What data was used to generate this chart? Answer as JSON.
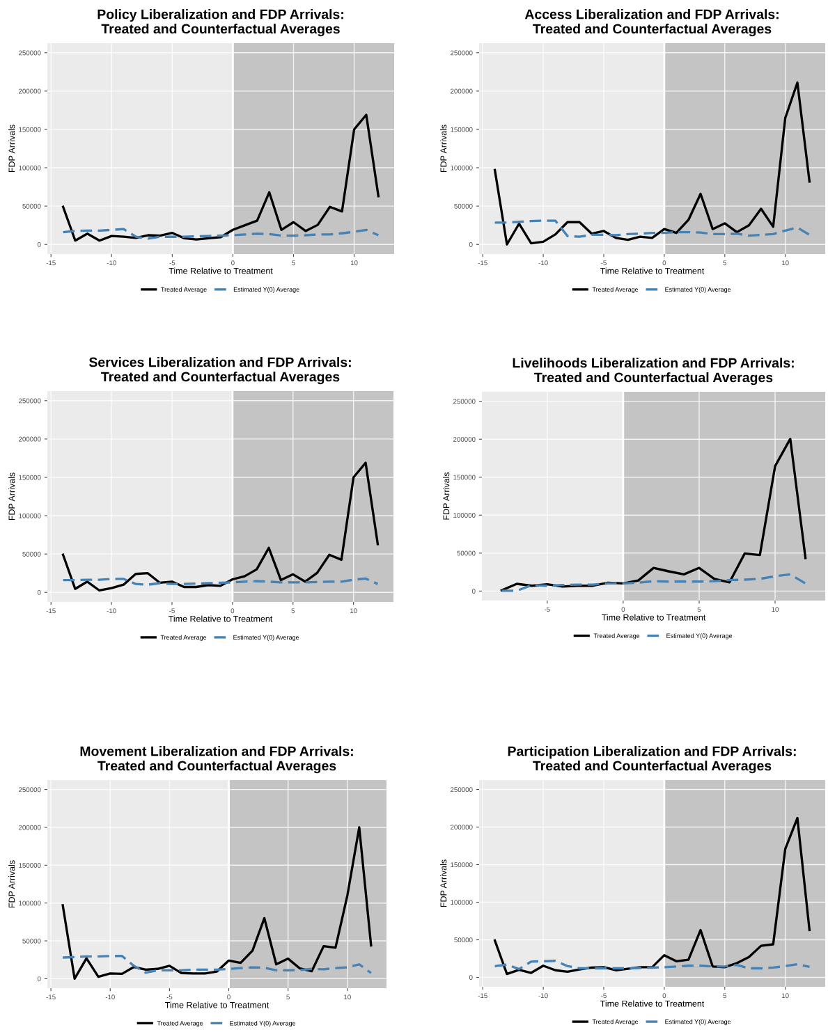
{
  "chart_data": [
    {
      "type": "line",
      "title": "Policy Liberalization and FDP Arrivals:\nTreated and Counterfactual Averages",
      "xlabel": "Time Relative to Treatment",
      "ylabel": "FDP Arrivals",
      "x": [
        -14,
        -13,
        -12,
        -11,
        -10,
        -9,
        -8,
        -7,
        -6,
        -5,
        -4,
        -3,
        -2,
        -1,
        0,
        1,
        2,
        3,
        4,
        5,
        6,
        7,
        8,
        9,
        10,
        11,
        12
      ],
      "xlim": [
        -15.3,
        13.3
      ],
      "xticks": [
        -15,
        -10,
        -5,
        0,
        5,
        10
      ],
      "ylim": [
        -12500,
        262500
      ],
      "yticks": [
        0,
        50000,
        100000,
        150000,
        200000,
        250000
      ],
      "grid": true,
      "legend": "bottom",
      "series": [
        {
          "name": "Treated Average",
          "color": "#000000",
          "line_style": "solid",
          "values": [
            49000,
            5000,
            14000,
            5000,
            11000,
            10000,
            8500,
            12000,
            11500,
            15000,
            8000,
            6500,
            8000,
            9500,
            19000,
            25000,
            31000,
            68000,
            19000,
            29000,
            17500,
            25500,
            49000,
            43000,
            150000,
            169000,
            63000
          ]
        },
        {
          "name": "Estimated Y(0) Average",
          "color": "#4682b4",
          "line_style": "dashed",
          "values": [
            16000,
            17500,
            18000,
            18000,
            19000,
            20000,
            10000,
            7500,
            10000,
            10000,
            10000,
            10500,
            11000,
            11500,
            12000,
            13000,
            14000,
            13500,
            11500,
            11500,
            12000,
            13000,
            13000,
            14500,
            16500,
            19000,
            12000
          ]
        }
      ],
      "bands": [
        {
          "axis": "x",
          "from": 0,
          "to": 13.3,
          "color": "#c4c4c4"
        }
      ],
      "ref_lines": [
        {
          "axis": "x",
          "value": 0,
          "color": "#ffffff"
        }
      ]
    },
    {
      "type": "line",
      "title": "Access Liberalization and FDP Arrivals:\nTreated and Counterfactual Averages",
      "xlabel": "Time Relative to Treatment",
      "ylabel": "FDP Arrivals",
      "x": [
        -14,
        -13,
        -12,
        -11,
        -10,
        -9,
        -8,
        -7,
        -6,
        -5,
        -4,
        -3,
        -2,
        -1,
        0,
        1,
        2,
        3,
        4,
        5,
        6,
        7,
        8,
        9,
        10,
        11,
        12
      ],
      "xlim": [
        -15.3,
        13.3
      ],
      "xticks": [
        -15,
        -10,
        -5,
        0,
        5,
        10
      ],
      "ylim": [
        -12500,
        262500
      ],
      "yticks": [
        0,
        50000,
        100000,
        150000,
        200000,
        250000
      ],
      "grid": true,
      "legend": "bottom",
      "series": [
        {
          "name": "Treated Average",
          "color": "#000000",
          "line_style": "solid",
          "values": [
            97000,
            0,
            27000,
            1500,
            3500,
            13000,
            29000,
            29000,
            14000,
            17500,
            8500,
            6000,
            10000,
            8500,
            20000,
            15000,
            32000,
            66000,
            20000,
            27500,
            16000,
            25000,
            46500,
            23000,
            165000,
            211000,
            82000
          ]
        },
        {
          "name": "Estimated Y(0) Average",
          "color": "#4682b4",
          "line_style": "dashed",
          "values": [
            28500,
            28500,
            29500,
            30500,
            31000,
            31000,
            11000,
            10000,
            12500,
            12500,
            12000,
            13500,
            14000,
            15000,
            15000,
            16000,
            16000,
            15500,
            13500,
            13500,
            14000,
            11500,
            12500,
            13500,
            18000,
            22000,
            12500
          ]
        }
      ],
      "bands": [
        {
          "axis": "x",
          "from": 0,
          "to": 13.3,
          "color": "#c4c4c4"
        }
      ],
      "ref_lines": [
        {
          "axis": "x",
          "value": 0,
          "color": "#ffffff"
        }
      ]
    },
    {
      "type": "line",
      "title": "Services Liberalization and FDP Arrivals:\nTreated and Counterfactual Averages",
      "xlabel": "Time Relative to Treatment",
      "ylabel": "FDP Arrivals",
      "x": [
        -14,
        -13,
        -12,
        -11,
        -10,
        -9,
        -8,
        -7,
        -6,
        -5,
        -4,
        -3,
        -2,
        -1,
        0,
        1,
        2,
        3,
        4,
        5,
        6,
        7,
        8,
        9,
        10,
        11,
        12
      ],
      "xlim": [
        -15.3,
        13.3
      ],
      "xticks": [
        -15,
        -10,
        -5,
        0,
        5,
        10
      ],
      "ylim": [
        -12500,
        262500
      ],
      "yticks": [
        0,
        50000,
        100000,
        150000,
        200000,
        250000
      ],
      "grid": true,
      "legend": "bottom",
      "series": [
        {
          "name": "Treated Average",
          "color": "#000000",
          "line_style": "solid",
          "values": [
            49000,
            4500,
            14000,
            2500,
            5500,
            10000,
            24000,
            25000,
            12500,
            14000,
            7000,
            7000,
            9500,
            8500,
            17000,
            21000,
            30000,
            58000,
            16000,
            23500,
            14000,
            25500,
            49000,
            42500,
            150000,
            169000,
            63000
          ]
        },
        {
          "name": "Estimated Y(0) Average",
          "color": "#4682b4",
          "line_style": "dashed",
          "values": [
            16000,
            16000,
            16500,
            16500,
            17500,
            17500,
            11000,
            10000,
            12000,
            11000,
            11000,
            11500,
            12000,
            12500,
            13000,
            14000,
            14500,
            14000,
            13000,
            13000,
            13000,
            13500,
            14000,
            14000,
            16500,
            18000,
            11000
          ]
        }
      ],
      "bands": [
        {
          "axis": "x",
          "from": 0,
          "to": 13.3,
          "color": "#c4c4c4"
        }
      ],
      "ref_lines": [
        {
          "axis": "x",
          "value": 0,
          "color": "#ffffff"
        }
      ]
    },
    {
      "type": "line",
      "title": "Livelihoods Liberalization and FDP Arrivals:\nTreated and Counterfactual Averages",
      "xlabel": "Time Relative to Treatment",
      "ylabel": "FDP Arrivals",
      "x": [
        -8,
        -7,
        -6,
        -5,
        -4,
        -3,
        -2,
        -1,
        0,
        1,
        2,
        3,
        4,
        5,
        6,
        7,
        8,
        9,
        10,
        11,
        12
      ],
      "xlim": [
        -9.3,
        13.3
      ],
      "xticks": [
        -5,
        0,
        5,
        10
      ],
      "ylim": [
        -12500,
        262500
      ],
      "yticks": [
        0,
        50000,
        100000,
        150000,
        200000,
        250000
      ],
      "grid": true,
      "legend": "bottom",
      "series": [
        {
          "name": "Treated Average",
          "color": "#000000",
          "line_style": "solid",
          "values": [
            1000,
            9500,
            7000,
            9000,
            6000,
            7000,
            7000,
            11000,
            10000,
            14000,
            30500,
            26000,
            22000,
            30500,
            16000,
            11500,
            49500,
            47500,
            164500,
            200500,
            43500
          ]
        },
        {
          "name": "Estimated Y(0) Average",
          "color": "#4682b4",
          "line_style": "dashed",
          "values": [
            500,
            500,
            8000,
            7000,
            8000,
            8500,
            8500,
            10000,
            10000,
            11000,
            13000,
            12500,
            12500,
            12500,
            13000,
            14500,
            15000,
            16000,
            19500,
            22000,
            10000
          ]
        }
      ],
      "bands": [
        {
          "axis": "x",
          "from": 0,
          "to": 13.3,
          "color": "#c4c4c4"
        }
      ],
      "ref_lines": [
        {
          "axis": "x",
          "value": 0,
          "color": "#ffffff"
        }
      ]
    },
    {
      "type": "line",
      "title": "Movement Liberalization and FDP Arrivals:\nTreated and Counterfactual Averages",
      "xlabel": "Time Relative to Treatment",
      "ylabel": "FDP Arrivals",
      "x": [
        -14,
        -13,
        -12,
        -11,
        -10,
        -9,
        -8,
        -7,
        -6,
        -5,
        -4,
        -3,
        -2,
        -1,
        0,
        1,
        2,
        3,
        4,
        5,
        6,
        7,
        8,
        9,
        10,
        11,
        12
      ],
      "xlim": [
        -15.3,
        13.3
      ],
      "xticks": [
        -15,
        -10,
        -5,
        0,
        5,
        10
      ],
      "ylim": [
        -12500,
        262500
      ],
      "yticks": [
        0,
        50000,
        100000,
        150000,
        200000,
        250000
      ],
      "grid": true,
      "legend": "bottom",
      "series": [
        {
          "name": "Treated Average",
          "color": "#000000",
          "line_style": "solid",
          "values": [
            97000,
            0,
            27000,
            2500,
            7000,
            6500,
            15500,
            12000,
            13000,
            17000,
            7500,
            7000,
            7000,
            9500,
            24000,
            21000,
            37000,
            80000,
            19000,
            26500,
            13500,
            10000,
            43000,
            41000,
            110000,
            200000,
            44000
          ]
        },
        {
          "name": "Estimated Y(0) Average",
          "color": "#4682b4",
          "line_style": "dashed",
          "values": [
            28000,
            28500,
            29500,
            29500,
            30000,
            30000,
            17000,
            8000,
            11000,
            11000,
            11000,
            12000,
            12000,
            12000,
            13000,
            14000,
            15000,
            14500,
            11000,
            11000,
            11500,
            13000,
            12500,
            14000,
            15000,
            19000,
            7500
          ]
        }
      ],
      "bands": [
        {
          "axis": "x",
          "from": 0,
          "to": 13.3,
          "color": "#c4c4c4"
        }
      ],
      "ref_lines": [
        {
          "axis": "x",
          "value": 0,
          "color": "#ffffff"
        }
      ]
    },
    {
      "type": "line",
      "title": "Participation Liberalization and FDP Arrivals:\nTreated and Counterfactual Averages",
      "xlabel": "Time Relative to Treatment",
      "ylabel": "FDP Arrivals",
      "x": [
        -14,
        -13,
        -12,
        -11,
        -10,
        -9,
        -8,
        -7,
        -6,
        -5,
        -4,
        -3,
        -2,
        -1,
        0,
        1,
        2,
        3,
        4,
        5,
        6,
        7,
        8,
        9,
        10,
        11,
        12
      ],
      "xlim": [
        -15.3,
        13.3
      ],
      "xticks": [
        -15,
        -10,
        -5,
        0,
        5,
        10
      ],
      "ylim": [
        -12500,
        262500
      ],
      "yticks": [
        0,
        50000,
        100000,
        150000,
        200000,
        250000
      ],
      "grid": true,
      "legend": "bottom",
      "series": [
        {
          "name": "Treated Average",
          "color": "#000000",
          "line_style": "solid",
          "values": [
            49000,
            4500,
            10000,
            6000,
            15500,
            9500,
            7500,
            10500,
            13000,
            13500,
            9500,
            11500,
            13500,
            13500,
            29500,
            21500,
            23500,
            63000,
            14500,
            13500,
            19000,
            27000,
            42000,
            44000,
            171000,
            212000,
            63000
          ]
        },
        {
          "name": "Estimated Y(0) Average",
          "color": "#4682b4",
          "line_style": "dashed",
          "values": [
            15000,
            17000,
            11000,
            21000,
            21500,
            22000,
            15000,
            12000,
            12000,
            12000,
            12000,
            12000,
            12500,
            13000,
            13500,
            14500,
            15500,
            15500,
            14500,
            14500,
            16500,
            12000,
            12000,
            13000,
            15000,
            17500,
            14000
          ]
        }
      ],
      "bands": [
        {
          "axis": "x",
          "from": 0,
          "to": 13.3,
          "color": "#c4c4c4"
        }
      ],
      "ref_lines": [
        {
          "axis": "x",
          "value": 0,
          "color": "#ffffff"
        }
      ]
    }
  ]
}
